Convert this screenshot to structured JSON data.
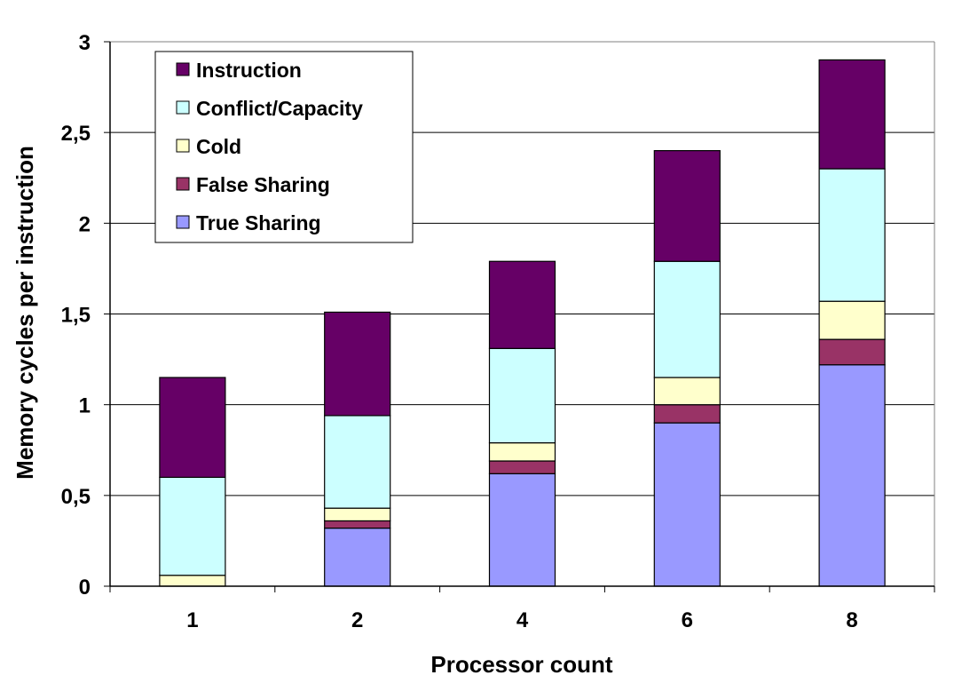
{
  "chart_data": {
    "type": "bar",
    "stacked": true,
    "categories": [
      "1",
      "2",
      "4",
      "6",
      "8"
    ],
    "series": [
      {
        "name": "True Sharing",
        "color": "#9999ff",
        "values": [
          0.0,
          0.32,
          0.62,
          0.9,
          1.22
        ]
      },
      {
        "name": "False Sharing",
        "color": "#993366",
        "values": [
          0.0,
          0.04,
          0.07,
          0.1,
          0.14
        ]
      },
      {
        "name": "Cold",
        "color": "#ffffcc",
        "values": [
          0.06,
          0.07,
          0.1,
          0.15,
          0.21
        ]
      },
      {
        "name": "Conflict/Capacity",
        "color": "#ccffff",
        "values": [
          0.54,
          0.51,
          0.52,
          0.64,
          0.73
        ]
      },
      {
        "name": "Instruction",
        "color": "#660066",
        "values": [
          0.55,
          0.57,
          0.48,
          0.61,
          0.6
        ]
      }
    ],
    "title": "",
    "xlabel": "Processor count",
    "ylabel": "Memory cycles per instruction",
    "ylim": [
      0,
      3
    ],
    "yticks": [
      "0",
      "0,5",
      "1",
      "1,5",
      "2",
      "2,5",
      "3"
    ],
    "grid": "horizontal",
    "legend_position": "top-left",
    "legend_order": [
      "Instruction",
      "Conflict/Capacity",
      "Cold",
      "False Sharing",
      "True Sharing"
    ]
  }
}
